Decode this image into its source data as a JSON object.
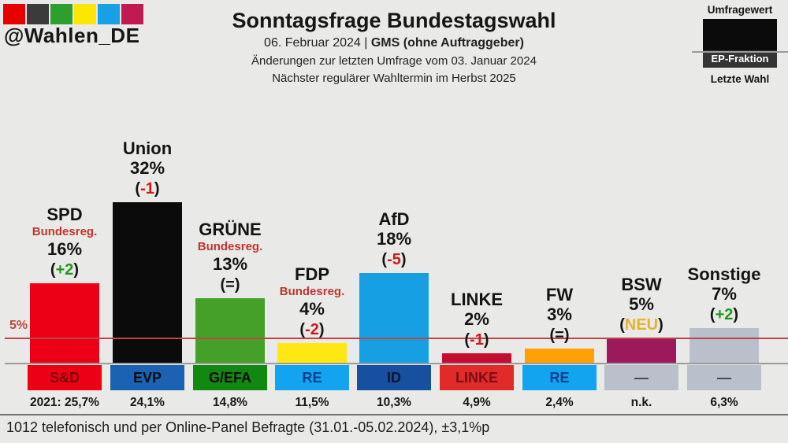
{
  "logo": {
    "handle": "@Wahlen_DE",
    "square_colors": [
      "#E60000",
      "#3B3B3B",
      "#2E9E2E",
      "#FFE600",
      "#18A0E4",
      "#C11A53"
    ]
  },
  "header": {
    "title": "Sonntagsfrage Bundestagswahl",
    "date_line": "06. Februar 2024 |",
    "institute": "GMS (ohne Auftraggeber)",
    "change_note": "Änderungen zur letzten Umfrage vom 03. Januar 2024",
    "next_election": "Nächster regulärer Wahltermin im Herbst 2025"
  },
  "legend": {
    "poll_value_label": "Umfragewert",
    "ep_group_label": "EP-Fraktion",
    "last_election_label": "Letzte Wahl"
  },
  "axis": {
    "threshold_label": "5%",
    "threshold_value": 5,
    "threshold_color": "#BE4545",
    "baseline_color": "#9B9B9B"
  },
  "footer": {
    "note": "1012 telefonisch und per Online-Panel Befragte (31.01.-05.02.2024), ±3,1%p"
  },
  "change_colors": {
    "up": "#1D9A1D",
    "down": "#CF1B1B",
    "same": "#141414",
    "new": "#E5B32B"
  },
  "gov_color": "#C13530",
  "chart_data": {
    "type": "bar",
    "title": "Sonntagsfrage Bundestagswahl",
    "categories": [
      "SPD",
      "Union",
      "GRÜNE",
      "FDP",
      "AfD",
      "LINKE",
      "FW",
      "BSW",
      "Sonstige"
    ],
    "values": [
      16,
      32,
      13,
      4,
      18,
      2,
      3,
      5,
      7
    ],
    "changes": [
      "+2",
      "-1",
      "=",
      "-2",
      "-5",
      "-1",
      "=",
      "NEU",
      "+2"
    ],
    "ep_fraktion": [
      "S&D",
      "EVP",
      "G/EFA",
      "RE",
      "ID",
      "LINKE",
      "RE",
      "—",
      "—"
    ],
    "letzte_wahl": [
      "2021: 25,7%",
      "24,1%",
      "14,8%",
      "11,5%",
      "10,3%",
      "4,9%",
      "2,4%",
      "n.k.",
      "6,3%"
    ],
    "threshold_line": {
      "value": 5,
      "label": "5%"
    },
    "ylim": [
      0,
      34
    ],
    "grid": false,
    "legend_position": "top-right",
    "parties": [
      {
        "name": "SPD",
        "gov": "Bundesreg.",
        "value_label": "16%",
        "pct": 16,
        "change": "+2",
        "change_type": "up",
        "bar_color": "#EC0016",
        "ep_label": "S&D",
        "ep_bg": "#EC0016",
        "ep_fg": "#7F0008",
        "last": "2021: 25,7%"
      },
      {
        "name": "Union",
        "gov": null,
        "value_label": "32%",
        "pct": 32,
        "change": "-1",
        "change_type": "down",
        "bar_color": "#0B0B0B",
        "ep_label": "EVP",
        "ep_bg": "#1B62B2",
        "ep_fg": "#0B0B0B",
        "last": "24,1%"
      },
      {
        "name": "GRÜNE",
        "gov": "Bundesreg.",
        "value_label": "13%",
        "pct": 13,
        "change": "=",
        "change_type": "same",
        "bar_color": "#45A02A",
        "ep_label": "G/EFA",
        "ep_bg": "#128812",
        "ep_fg": "#0B0B0B",
        "last": "14,8%"
      },
      {
        "name": "FDP",
        "gov": "Bundesreg.",
        "value_label": "4%",
        "pct": 4,
        "change": "-2",
        "change_type": "down",
        "bar_color": "#FFE714",
        "ep_label": "RE",
        "ep_bg": "#12A4EE",
        "ep_fg": "#0A3F8C",
        "last": "11,5%"
      },
      {
        "name": "AfD",
        "gov": null,
        "value_label": "18%",
        "pct": 18,
        "change": "-5",
        "change_type": "down",
        "bar_color": "#169FE2",
        "ep_label": "ID",
        "ep_bg": "#17509E",
        "ep_fg": "#0A142E",
        "last": "10,3%"
      },
      {
        "name": "LINKE",
        "gov": null,
        "value_label": "2%",
        "pct": 2,
        "change": "-1",
        "change_type": "down",
        "bar_color": "#C60C30",
        "ep_label": "LINKE",
        "ep_bg": "#E12A2A",
        "ep_fg": "#7A0F14",
        "last": "4,9%"
      },
      {
        "name": "FW",
        "gov": null,
        "value_label": "3%",
        "pct": 3,
        "change": "=",
        "change_type": "same",
        "bar_color": "#FFA005",
        "ep_label": "RE",
        "ep_bg": "#12A4EE",
        "ep_fg": "#0A3F8C",
        "last": "2,4%"
      },
      {
        "name": "BSW",
        "gov": null,
        "value_label": "5%",
        "pct": 5,
        "change": "NEU",
        "change_type": "new",
        "bar_color": "#9C1A5B",
        "ep_label": "—",
        "ep_bg": "#B9C0CB",
        "ep_fg": "#3A434E",
        "last": "n.k."
      },
      {
        "name": "Sonstige",
        "gov": null,
        "value_label": "7%",
        "pct": 7,
        "change": "+2",
        "change_type": "up",
        "bar_color": "#B9C0CB",
        "ep_label": "—",
        "ep_bg": "#B9C0CB",
        "ep_fg": "#3A434E",
        "last": "6,3%"
      }
    ]
  }
}
